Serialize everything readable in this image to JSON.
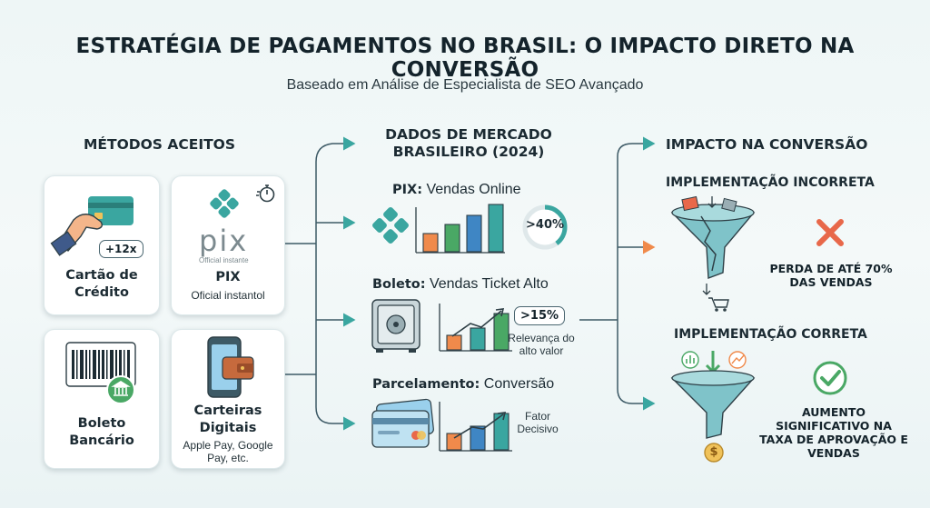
{
  "header": {
    "title": "ESTRATÉGIA DE PAGAMENTOS NO BRASIL: O IMPACTO DIRETO NA CONVERSÃO",
    "subtitle": "Baseado em Análise de Especialista de SEO Avançado"
  },
  "methods": {
    "heading": "MÉTODOS ACEITOS",
    "card_badge": "+12x",
    "credit_card": "Cartão de Crédito",
    "pix_logo": "pix",
    "pix_logo_sub": "Official instante",
    "pix_label": "PIX",
    "pix_sub": "Oficial instantol",
    "boleto": "Boleto Bancário",
    "wallets": "Carteiras Digitais",
    "wallets_sub": "Apple Pay, Google Pay, etc."
  },
  "market": {
    "heading": "DADOS DE MERCADO BRASILEIRO (2024)",
    "pix_bold": "PIX:",
    "pix_rest": " Vendas Online",
    "pix_stat": ">40%",
    "pix_stat_fraction": 0.4,
    "boleto_bold": "Boleto:",
    "boleto_rest": " Vendas Ticket Alto",
    "boleto_stat": ">15%",
    "boleto_note": "Relevança do alto valor",
    "parc_bold": "Parcelamento:",
    "parc_rest": " Conversão",
    "parc_note": "Fator Decisivo"
  },
  "impact": {
    "heading": "IMPACTO NA CONVERSÃO",
    "wrong_heading": "IMPLEMENTAÇÃO INCORRETA",
    "wrong_result": "PERDA DE ATÉ 70% DAS VENDAS",
    "right_heading": "IMPLEMENTAÇÃO CORRETA",
    "right_result": "AUMENTO SIGNIFICATIVO NA TAXA DE APROVAÇÃO E VENDAS",
    "coin_symbol": "$"
  },
  "colors": {
    "teal": "#3aa6a0",
    "orange": "#f08a4b",
    "blue": "#3f86c4",
    "green": "#4aa865",
    "red": "#e8684a",
    "dark": "#3d5a66"
  }
}
